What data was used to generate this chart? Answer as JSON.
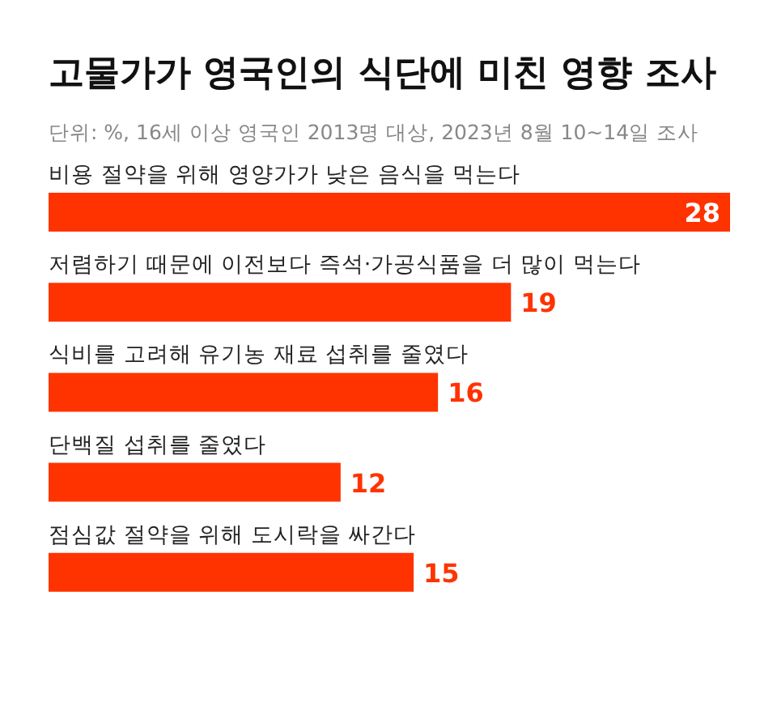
{
  "chart_data": {
    "type": "bar",
    "orientation": "horizontal",
    "title": "고물가가 영국인의 식단에 미친 영향 조사",
    "subtitle": "단위: %, 16세 이상 영국인 2013명 대상, 2023년 8월 10~14일 조사",
    "categories": [
      "비용 절약을 위해 영양가가 낮은 음식을 먹는다",
      "저렴하기 때문에 이전보다 즉석·가공식품을 더 많이 먹는다",
      "식비를 고려해 유기농 재료 섭취를 줄였다",
      "단백질 섭취를 줄였다",
      "점심값 절약을 위해 도시락을 싸간다"
    ],
    "values": [
      28,
      19,
      16,
      12,
      15
    ],
    "color": "#ff3300",
    "data_labels": true
  }
}
